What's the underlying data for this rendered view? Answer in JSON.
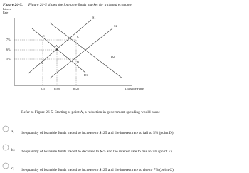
{
  "figure": {
    "caption_label": "Figure 26-5.",
    "caption": "Figure 26-5 shows the loanable funds market for a closed economy.",
    "y_label": "Interest Rate",
    "y_ticks": [
      "7%",
      "6%",
      "5%"
    ],
    "x_ticks": [
      "$75",
      "$100",
      "$125"
    ],
    "x_label": "Loanable Funds",
    "curves": [
      "S1",
      "S2",
      "D1",
      "D2"
    ],
    "points": [
      "A",
      "B",
      "C",
      "D",
      "E"
    ]
  },
  "question": {
    "text": "Refer to Figure 26-5. Starting at point A, a reduction in government spending would cause",
    "options": [
      {
        "letter": "a)",
        "text": "the quantity of loanable funds traded to increase to $125 and the interest rate to fall to 5% (point D)."
      },
      {
        "letter": "b)",
        "text": "the quantity of loanable funds traded to decrease to $75 and the interest rate to rise to 7% (point E)."
      },
      {
        "letter": "c)",
        "text": "the quantity of loanable funds traded to increase to $125 and the interest rate to rise to 7% (point C)."
      }
    ]
  }
}
